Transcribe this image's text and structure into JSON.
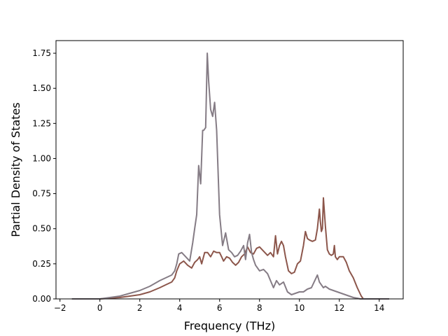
{
  "chart_data": {
    "type": "line",
    "xlabel": "Frequency (THz)",
    "ylabel": "Partial Density of States",
    "xlim": [
      -2.2,
      15.2
    ],
    "ylim": [
      0,
      1.84
    ],
    "xticks": [
      -2,
      0,
      2,
      4,
      6,
      8,
      10,
      12,
      14
    ],
    "xtick_labels": [
      "−2",
      "0",
      "2",
      "4",
      "6",
      "8",
      "10",
      "12",
      "14"
    ],
    "yticks": [
      0,
      0.25,
      0.5,
      0.75,
      1.0,
      1.25,
      1.5,
      1.75
    ],
    "ytick_labels": [
      "0.00",
      "0.25",
      "0.50",
      "0.75",
      "1.00",
      "1.25",
      "1.50",
      "1.75"
    ],
    "grid": false,
    "legend": "none",
    "series": [
      {
        "color": "#8c564b",
        "x": [
          -1.4,
          0,
          0.5,
          1,
          1.5,
          2,
          2.5,
          3,
          3.3,
          3.6,
          3.75,
          3.85,
          4.0,
          4.2,
          4.4,
          4.6,
          4.75,
          4.9,
          5.0,
          5.1,
          5.25,
          5.4,
          5.55,
          5.7,
          5.85,
          6.0,
          6.1,
          6.2,
          6.35,
          6.5,
          6.65,
          6.8,
          6.95,
          7.1,
          7.25,
          7.4,
          7.55,
          7.7,
          7.85,
          8.0,
          8.2,
          8.4,
          8.55,
          8.7,
          8.8,
          8.9,
          9.0,
          9.1,
          9.2,
          9.3,
          9.45,
          9.6,
          9.75,
          9.9,
          10.05,
          10.2,
          10.3,
          10.4,
          10.5,
          10.65,
          10.8,
          10.9,
          11.0,
          11.05,
          11.1,
          11.15,
          11.2,
          11.3,
          11.4,
          11.5,
          11.6,
          11.7,
          11.75,
          11.8,
          11.9,
          12.0,
          12.2,
          12.35,
          12.5,
          12.7,
          12.9,
          13.1,
          13.2,
          14.5
        ],
        "y": [
          0,
          0,
          0.005,
          0.01,
          0.02,
          0.03,
          0.05,
          0.08,
          0.1,
          0.12,
          0.15,
          0.2,
          0.25,
          0.27,
          0.24,
          0.22,
          0.26,
          0.28,
          0.3,
          0.25,
          0.33,
          0.33,
          0.3,
          0.34,
          0.33,
          0.33,
          0.3,
          0.27,
          0.3,
          0.29,
          0.26,
          0.24,
          0.26,
          0.3,
          0.32,
          0.37,
          0.33,
          0.32,
          0.36,
          0.37,
          0.34,
          0.31,
          0.33,
          0.3,
          0.45,
          0.32,
          0.38,
          0.41,
          0.38,
          0.3,
          0.2,
          0.18,
          0.19,
          0.25,
          0.27,
          0.38,
          0.48,
          0.43,
          0.42,
          0.41,
          0.42,
          0.5,
          0.64,
          0.55,
          0.48,
          0.5,
          0.72,
          0.52,
          0.35,
          0.32,
          0.31,
          0.32,
          0.38,
          0.3,
          0.28,
          0.3,
          0.3,
          0.26,
          0.2,
          0.15,
          0.08,
          0.02,
          0,
          0
        ]
      },
      {
        "color": "#857c85",
        "x": [
          -1.4,
          0,
          0.5,
          1,
          1.5,
          2,
          2.5,
          3,
          3.3,
          3.6,
          3.75,
          3.85,
          3.95,
          4.1,
          4.3,
          4.5,
          4.65,
          4.75,
          4.85,
          4.95,
          5.05,
          5.15,
          5.2,
          5.3,
          5.38,
          5.45,
          5.55,
          5.65,
          5.75,
          5.85,
          6.0,
          6.15,
          6.3,
          6.45,
          6.6,
          6.75,
          6.9,
          7.05,
          7.2,
          7.3,
          7.4,
          7.5,
          7.6,
          7.7,
          7.8,
          8.0,
          8.2,
          8.4,
          8.55,
          8.7,
          8.85,
          9.0,
          9.2,
          9.4,
          9.6,
          9.8,
          10.0,
          10.2,
          10.4,
          10.6,
          10.8,
          10.9,
          11.0,
          11.1,
          11.2,
          11.3,
          11.4,
          11.5,
          11.7,
          11.9,
          12.1,
          12.3,
          12.5,
          12.7,
          12.9,
          13.05,
          13.2,
          14.5
        ],
        "y": [
          0,
          0,
          0.01,
          0.02,
          0.04,
          0.06,
          0.09,
          0.13,
          0.15,
          0.17,
          0.2,
          0.25,
          0.32,
          0.33,
          0.3,
          0.27,
          0.4,
          0.5,
          0.6,
          0.95,
          0.82,
          1.2,
          1.2,
          1.22,
          1.75,
          1.55,
          1.35,
          1.3,
          1.4,
          1.2,
          0.6,
          0.38,
          0.47,
          0.35,
          0.33,
          0.3,
          0.31,
          0.34,
          0.38,
          0.28,
          0.4,
          0.46,
          0.33,
          0.28,
          0.24,
          0.2,
          0.21,
          0.18,
          0.13,
          0.08,
          0.13,
          0.1,
          0.12,
          0.05,
          0.03,
          0.04,
          0.05,
          0.05,
          0.07,
          0.08,
          0.14,
          0.17,
          0.12,
          0.1,
          0.08,
          0.09,
          0.08,
          0.07,
          0.06,
          0.05,
          0.04,
          0.03,
          0.02,
          0.01,
          0.005,
          0,
          0,
          0
        ]
      }
    ]
  }
}
